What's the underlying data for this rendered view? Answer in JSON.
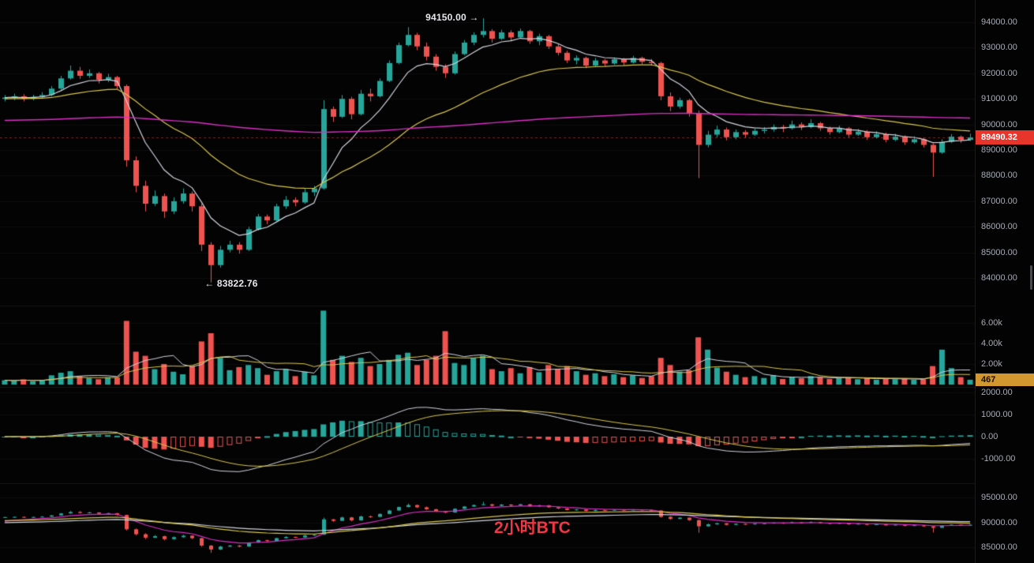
{
  "annotations": {
    "high": "94150.00 →",
    "low": "← 83822.76",
    "watermark": "2小时BTC",
    "watermark_color": "#f23645"
  },
  "badges": {
    "price": {
      "text": "89490.32",
      "bg": "#e7352c",
      "fg": "#ffffff"
    },
    "volume": {
      "text": "467",
      "bg": "#d2972e",
      "fg": "#101010"
    }
  },
  "colors": {
    "up": "#26a69a",
    "down": "#ef5350",
    "white": "#d1d4dc",
    "yellow": "#d9c64a",
    "magenta": "#db2ec4",
    "grid": "rgba(255,255,255,0.045)",
    "separator": "rgba(255,255,255,0.08)",
    "axis_text": "#a6abb5",
    "background": "#030304"
  },
  "axis": {
    "price": [
      {
        "text": "94000.00",
        "value": 94000
      },
      {
        "text": "93000.00",
        "value": 93000
      },
      {
        "text": "92000.00",
        "value": 92000
      },
      {
        "text": "91000.00",
        "value": 91000
      },
      {
        "text": "90000.00",
        "value": 90000
      },
      {
        "text": "89000.00",
        "value": 89000
      },
      {
        "text": "88000.00",
        "value": 88000
      },
      {
        "text": "87000.00",
        "value": 87000
      },
      {
        "text": "86000.00",
        "value": 86000
      },
      {
        "text": "85000.00",
        "value": 85000
      },
      {
        "text": "84000.00",
        "value": 84000
      }
    ],
    "volume": [
      {
        "text": "6.00k",
        "value": 6000
      },
      {
        "text": "4.00k",
        "value": 4000
      },
      {
        "text": "2.00k",
        "value": 2000
      }
    ],
    "macd": [
      {
        "text": "2000.00",
        "value": 2000
      },
      {
        "text": "1000.00",
        "value": 1000
      },
      {
        "text": "0.00",
        "value": 0
      },
      {
        "text": "-1000.00",
        "value": -1000
      }
    ],
    "bottom": [
      {
        "text": "95000.00",
        "value": 95000
      },
      {
        "text": "90000.00",
        "value": 90000
      },
      {
        "text": "85000.00",
        "value": 85000
      }
    ]
  },
  "chart_data": {
    "type": "candlestick",
    "title": "2小时BTC",
    "price": {
      "ylim": [
        82950,
        94864
      ],
      "last": 89490.32,
      "high_annotation": {
        "value": 94150.0,
        "index": 51
      },
      "low_annotation": {
        "value": 83822.76,
        "index": 22
      },
      "emas": [
        {
          "period": 7,
          "seed": 91050,
          "color": "white"
        },
        {
          "period": 26,
          "seed": 91000,
          "color": "yellow"
        },
        {
          "period": 240,
          "seed": 90150,
          "color": "magenta"
        }
      ],
      "ohlc": [
        [
          91000,
          91150,
          90900,
          91050
        ],
        [
          91050,
          91200,
          90950,
          91100
        ],
        [
          91100,
          91180,
          90900,
          91000
        ],
        [
          91000,
          91160,
          90940,
          91080
        ],
        [
          91080,
          91260,
          91020,
          91150
        ],
        [
          91150,
          91500,
          91100,
          91400
        ],
        [
          91400,
          91900,
          91350,
          91800
        ],
        [
          91800,
          92300,
          91750,
          92100
        ],
        [
          92100,
          92250,
          91780,
          91900
        ],
        [
          91900,
          92150,
          91820,
          92000
        ],
        [
          92000,
          92050,
          91600,
          91750
        ],
        [
          91750,
          91980,
          91650,
          91850
        ],
        [
          91850,
          91900,
          91380,
          91500
        ],
        [
          91500,
          91560,
          88350,
          88600
        ],
        [
          88600,
          88750,
          87350,
          87600
        ],
        [
          87600,
          87800,
          86600,
          86900
        ],
        [
          86900,
          87420,
          86820,
          87200
        ],
        [
          87200,
          87300,
          86350,
          86600
        ],
        [
          86600,
          87150,
          86500,
          87000
        ],
        [
          87000,
          87500,
          86900,
          87300
        ],
        [
          87300,
          87380,
          86600,
          86800
        ],
        [
          86800,
          86900,
          85050,
          85300
        ],
        [
          85300,
          85400,
          83822.76,
          84500
        ],
        [
          84500,
          85250,
          84400,
          85100
        ],
        [
          85100,
          85450,
          85000,
          85300
        ],
        [
          85300,
          85400,
          84950,
          85100
        ],
        [
          85100,
          86000,
          85050,
          85900
        ],
        [
          85900,
          86500,
          85850,
          86400
        ],
        [
          86400,
          86480,
          86100,
          86250
        ],
        [
          86250,
          86900,
          86200,
          86800
        ],
        [
          86800,
          87200,
          86700,
          87050
        ],
        [
          87050,
          87150,
          86800,
          86950
        ],
        [
          86950,
          87500,
          86900,
          87350
        ],
        [
          87350,
          87600,
          87200,
          87500
        ],
        [
          87500,
          90950,
          87450,
          90600
        ],
        [
          90600,
          90700,
          90100,
          90300
        ],
        [
          90300,
          91150,
          90250,
          91000
        ],
        [
          91000,
          91080,
          90200,
          90400
        ],
        [
          90400,
          91350,
          90350,
          91200
        ],
        [
          91200,
          91400,
          90900,
          91100
        ],
        [
          91100,
          91800,
          91050,
          91700
        ],
        [
          91700,
          92500,
          91650,
          92400
        ],
        [
          92400,
          93200,
          92350,
          93100
        ],
        [
          93100,
          93800,
          93050,
          93500
        ],
        [
          93500,
          93580,
          92900,
          93050
        ],
        [
          93050,
          93200,
          92500,
          92650
        ],
        [
          92650,
          92750,
          92100,
          92250
        ],
        [
          92250,
          92350,
          91820,
          92000
        ],
        [
          92000,
          92850,
          91950,
          92750
        ],
        [
          92750,
          93300,
          92700,
          93200
        ],
        [
          93200,
          93600,
          93100,
          93500
        ],
        [
          93500,
          94150,
          93400,
          93650
        ],
        [
          93650,
          93720,
          93200,
          93350
        ],
        [
          93350,
          93700,
          93300,
          93600
        ],
        [
          93600,
          93680,
          93250,
          93400
        ],
        [
          93400,
          93750,
          93350,
          93650
        ],
        [
          93650,
          93700,
          93150,
          93250
        ],
        [
          93250,
          93550,
          93100,
          93450
        ],
        [
          93450,
          93500,
          92950,
          93050
        ],
        [
          93050,
          93150,
          92700,
          92800
        ],
        [
          92800,
          92880,
          92400,
          92500
        ],
        [
          92500,
          92700,
          92350,
          92600
        ],
        [
          92600,
          92650,
          92200,
          92300
        ],
        [
          92300,
          92600,
          92250,
          92500
        ],
        [
          92500,
          92560,
          92280,
          92380
        ],
        [
          92380,
          92620,
          92330,
          92550
        ],
        [
          92550,
          92600,
          92320,
          92420
        ],
        [
          92420,
          92680,
          92380,
          92600
        ],
        [
          92600,
          92650,
          92350,
          92450
        ],
        [
          92450,
          92560,
          92300,
          92400
        ],
        [
          92400,
          92450,
          90950,
          91100
        ],
        [
          91100,
          91250,
          90520,
          90700
        ],
        [
          90700,
          91050,
          90620,
          90950
        ],
        [
          90950,
          91000,
          90300,
          90450
        ],
        [
          90450,
          90550,
          87900,
          89200
        ],
        [
          89200,
          89750,
          89100,
          89600
        ],
        [
          89600,
          89950,
          89500,
          89800
        ],
        [
          89800,
          89880,
          89380,
          89500
        ],
        [
          89500,
          89800,
          89420,
          89700
        ],
        [
          89700,
          89780,
          89480,
          89600
        ],
        [
          89600,
          89850,
          89550,
          89750
        ],
        [
          89750,
          89900,
          89650,
          89800
        ],
        [
          89800,
          90000,
          89720,
          89900
        ],
        [
          89900,
          89980,
          89700,
          89850
        ],
        [
          89850,
          90150,
          89800,
          90000
        ],
        [
          90000,
          90080,
          89780,
          89900
        ],
        [
          89900,
          90200,
          89850,
          90050
        ],
        [
          90050,
          90100,
          89750,
          89850
        ],
        [
          89850,
          89920,
          89600,
          89700
        ],
        [
          89700,
          89950,
          89650,
          89850
        ],
        [
          89850,
          89900,
          89500,
          89600
        ],
        [
          89600,
          89820,
          89550,
          89720
        ],
        [
          89720,
          89780,
          89400,
          89500
        ],
        [
          89500,
          89730,
          89450,
          89620
        ],
        [
          89620,
          89680,
          89300,
          89400
        ],
        [
          89400,
          89630,
          89350,
          89520
        ],
        [
          89520,
          89570,
          89200,
          89300
        ],
        [
          89300,
          89530,
          89250,
          89420
        ],
        [
          89420,
          89470,
          89100,
          89200
        ],
        [
          89200,
          89260,
          87950,
          88900
        ],
        [
          88900,
          89420,
          88850,
          89320
        ],
        [
          89320,
          89620,
          89270,
          89520
        ],
        [
          89520,
          89570,
          89280,
          89400
        ],
        [
          89400,
          89640,
          89350,
          89490.32
        ]
      ]
    },
    "volume": {
      "ylim": [
        0,
        7615
      ],
      "last": 467,
      "smas": [
        {
          "period": 6,
          "color": "white"
        },
        {
          "period": 12,
          "color": "yellow"
        }
      ],
      "values": [
        420,
        360,
        500,
        320,
        450,
        900,
        1150,
        1300,
        820,
        640,
        520,
        700,
        680,
        6200,
        3200,
        2800,
        1500,
        2000,
        1250,
        1000,
        1800,
        4200,
        5000,
        2600,
        1400,
        1700,
        1900,
        1600,
        950,
        1300,
        1500,
        820,
        1250,
        900,
        7200,
        2400,
        2800,
        2200,
        2600,
        1800,
        2000,
        2400,
        2900,
        3100,
        1900,
        2400,
        2800,
        5200,
        2100,
        1900,
        2600,
        2800,
        1500,
        1300,
        1600,
        1100,
        1700,
        1200,
        1900,
        1500,
        1800,
        1300,
        950,
        1100,
        820,
        1000,
        720,
        900,
        640,
        820,
        2600,
        1900,
        1250,
        1400,
        4600,
        3400,
        1650,
        1250,
        950,
        720,
        820,
        640,
        900,
        540,
        720,
        620,
        820,
        700,
        540,
        620,
        700,
        520,
        620,
        470,
        560,
        520,
        600,
        470,
        520,
        1800,
        3400,
        1600,
        720,
        467
      ]
    },
    "macd": {
      "ylim": [
        -2107,
        2179
      ],
      "fast": 12,
      "slow": 26,
      "signal": 9,
      "line_color": "white",
      "signal_color": "yellow"
    },
    "bottom": {
      "ylim": [
        81774,
        97752
      ],
      "emas": [
        {
          "period": 8,
          "seed": 90000,
          "color": "magenta"
        },
        {
          "period": 50,
          "seed": 89900,
          "color": "white"
        },
        {
          "period": 30,
          "seed": 90300,
          "color": "yellow"
        }
      ]
    }
  }
}
